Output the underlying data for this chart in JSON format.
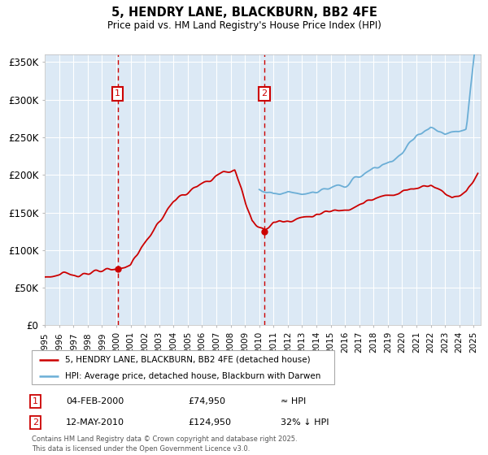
{
  "title": "5, HENDRY LANE, BLACKBURN, BB2 4FE",
  "subtitle": "Price paid vs. HM Land Registry's House Price Index (HPI)",
  "legend_line1": "5, HENDRY LANE, BLACKBURN, BB2 4FE (detached house)",
  "legend_line2": "HPI: Average price, detached house, Blackburn with Darwen",
  "annotation1_date": "04-FEB-2000",
  "annotation1_price": 74950,
  "annotation1_text": "≈ HPI",
  "annotation2_date": "12-MAY-2010",
  "annotation2_price": 124950,
  "annotation2_text": "32% ↓ HPI",
  "footnote": "Contains HM Land Registry data © Crown copyright and database right 2025.\nThis data is licensed under the Open Government Licence v3.0.",
  "ylim": [
    0,
    360000
  ],
  "yticks": [
    0,
    50000,
    100000,
    150000,
    200000,
    250000,
    300000,
    350000
  ],
  "ytick_labels": [
    "£0",
    "£50K",
    "£100K",
    "£150K",
    "£200K",
    "£250K",
    "£300K",
    "£350K"
  ],
  "hpi_color": "#6baed6",
  "price_color": "#cc0000",
  "vline_color": "#cc0000",
  "bg_color": "#dce9f5",
  "grid_color": "#ffffff",
  "marker1_x": 2000.09,
  "marker1_y": 74950,
  "marker2_x": 2010.36,
  "marker2_y": 124950,
  "xlim_start": 1995,
  "xlim_end": 2025.5
}
